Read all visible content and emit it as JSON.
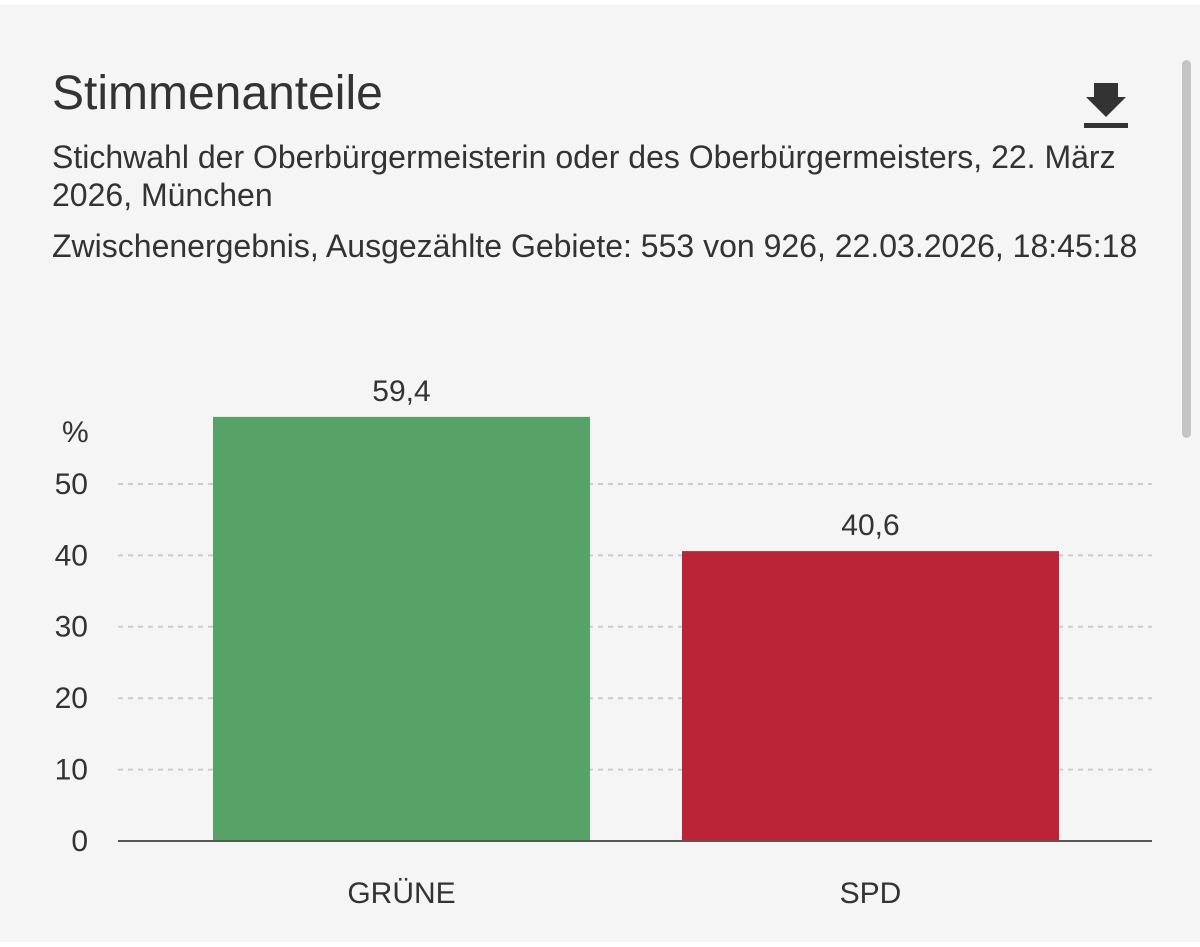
{
  "header": {
    "title": "Stimmenanteile",
    "subtitle": "Stichwahl der Oberbürgermeisterin oder des Oberbürgermeisters, 22. März 2026, München",
    "status": "Zwischenergebnis, Ausgezählte Gebiete: 553 von 926, 22.03.2026, 18:45:18",
    "download_icon": "download-icon"
  },
  "chart_data": {
    "type": "bar",
    "title": "Stimmenanteile",
    "categories": [
      "GRÜNE",
      "SPD"
    ],
    "values": [
      59.4,
      40.6
    ],
    "value_labels": [
      "59,4",
      "40,6"
    ],
    "colors": [
      "#57a267",
      "#bb2437"
    ],
    "ylabel": "%",
    "xlabel": "",
    "ylim": [
      0,
      50
    ],
    "yticks": [
      0,
      10,
      20,
      30,
      40,
      50
    ],
    "grid": true,
    "legend": "none"
  },
  "colors": {
    "background": "#f5f5f5",
    "text": "#333333",
    "gridline": "#cccccc",
    "axis": "#555555"
  }
}
